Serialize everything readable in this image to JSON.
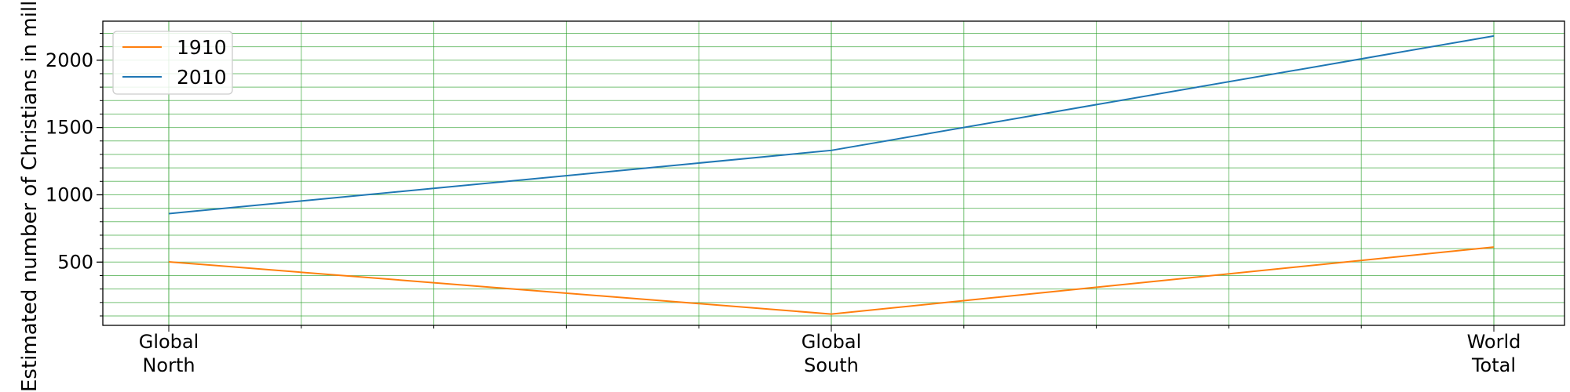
{
  "chart_data": {
    "type": "line",
    "categories": [
      "Global\nNorth",
      "Global\nSouth",
      "World\nTotal"
    ],
    "series": [
      {
        "name": "1910",
        "color": "#ff7f0e",
        "values": [
          502,
          114,
          612
        ]
      },
      {
        "name": "2010",
        "color": "#1f77b4",
        "values": [
          860,
          1330,
          2180
        ]
      }
    ],
    "title": "",
    "xlabel": "",
    "ylabel": "Estimated number of Christians in millions",
    "ylim": [
      30,
      2290
    ],
    "yticks": [
      500,
      1000,
      1500,
      2000
    ],
    "y_minor_step": 100,
    "x_minor_divisions": 5,
    "grid": true,
    "grid_color": "#2ca02c",
    "legend_position": "top-left"
  }
}
